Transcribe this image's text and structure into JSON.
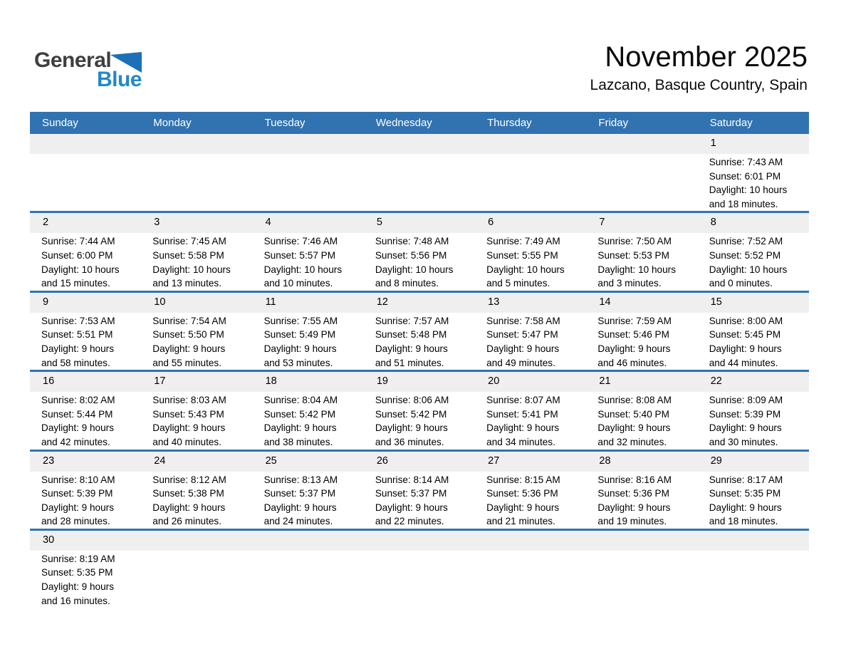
{
  "logo": {
    "general": "General",
    "blue": "Blue",
    "triangle_icon": "blue-flag-triangle"
  },
  "header": {
    "title": "November 2025",
    "subtitle": "Lazcano, Basque Country, Spain"
  },
  "colors": {
    "header_blue": "#3173B1",
    "row_divider_blue": "#2E74B5",
    "band_gray": "#EFEFEF",
    "logo_general": "#3F3F3F",
    "logo_blue": "#2189CB",
    "logo_triangle": "#1D70B7",
    "text_black": "#000000"
  },
  "calendar": {
    "day_headers": [
      "Sunday",
      "Monday",
      "Tuesday",
      "Wednesday",
      "Thursday",
      "Friday",
      "Saturday"
    ],
    "weeks": [
      [
        null,
        null,
        null,
        null,
        null,
        null,
        {
          "day": "1",
          "lines": [
            "Sunrise: 7:43 AM",
            "Sunset: 6:01 PM",
            "Daylight: 10 hours",
            "and 18 minutes."
          ]
        }
      ],
      [
        {
          "day": "2",
          "lines": [
            "Sunrise: 7:44 AM",
            "Sunset: 6:00 PM",
            "Daylight: 10 hours",
            "and 15 minutes."
          ]
        },
        {
          "day": "3",
          "lines": [
            "Sunrise: 7:45 AM",
            "Sunset: 5:58 PM",
            "Daylight: 10 hours",
            "and 13 minutes."
          ]
        },
        {
          "day": "4",
          "lines": [
            "Sunrise: 7:46 AM",
            "Sunset: 5:57 PM",
            "Daylight: 10 hours",
            "and 10 minutes."
          ]
        },
        {
          "day": "5",
          "lines": [
            "Sunrise: 7:48 AM",
            "Sunset: 5:56 PM",
            "Daylight: 10 hours",
            "and 8 minutes."
          ]
        },
        {
          "day": "6",
          "lines": [
            "Sunrise: 7:49 AM",
            "Sunset: 5:55 PM",
            "Daylight: 10 hours",
            "and 5 minutes."
          ]
        },
        {
          "day": "7",
          "lines": [
            "Sunrise: 7:50 AM",
            "Sunset: 5:53 PM",
            "Daylight: 10 hours",
            "and 3 minutes."
          ]
        },
        {
          "day": "8",
          "lines": [
            "Sunrise: 7:52 AM",
            "Sunset: 5:52 PM",
            "Daylight: 10 hours",
            "and 0 minutes."
          ]
        }
      ],
      [
        {
          "day": "9",
          "lines": [
            "Sunrise: 7:53 AM",
            "Sunset: 5:51 PM",
            "Daylight: 9 hours",
            "and 58 minutes."
          ]
        },
        {
          "day": "10",
          "lines": [
            "Sunrise: 7:54 AM",
            "Sunset: 5:50 PM",
            "Daylight: 9 hours",
            "and 55 minutes."
          ]
        },
        {
          "day": "11",
          "lines": [
            "Sunrise: 7:55 AM",
            "Sunset: 5:49 PM",
            "Daylight: 9 hours",
            "and 53 minutes."
          ]
        },
        {
          "day": "12",
          "lines": [
            "Sunrise: 7:57 AM",
            "Sunset: 5:48 PM",
            "Daylight: 9 hours",
            "and 51 minutes."
          ]
        },
        {
          "day": "13",
          "lines": [
            "Sunrise: 7:58 AM",
            "Sunset: 5:47 PM",
            "Daylight: 9 hours",
            "and 49 minutes."
          ]
        },
        {
          "day": "14",
          "lines": [
            "Sunrise: 7:59 AM",
            "Sunset: 5:46 PM",
            "Daylight: 9 hours",
            "and 46 minutes."
          ]
        },
        {
          "day": "15",
          "lines": [
            "Sunrise: 8:00 AM",
            "Sunset: 5:45 PM",
            "Daylight: 9 hours",
            "and 44 minutes."
          ]
        }
      ],
      [
        {
          "day": "16",
          "lines": [
            "Sunrise: 8:02 AM",
            "Sunset: 5:44 PM",
            "Daylight: 9 hours",
            "and 42 minutes."
          ]
        },
        {
          "day": "17",
          "lines": [
            "Sunrise: 8:03 AM",
            "Sunset: 5:43 PM",
            "Daylight: 9 hours",
            "and 40 minutes."
          ]
        },
        {
          "day": "18",
          "lines": [
            "Sunrise: 8:04 AM",
            "Sunset: 5:42 PM",
            "Daylight: 9 hours",
            "and 38 minutes."
          ]
        },
        {
          "day": "19",
          "lines": [
            "Sunrise: 8:06 AM",
            "Sunset: 5:42 PM",
            "Daylight: 9 hours",
            "and 36 minutes."
          ]
        },
        {
          "day": "20",
          "lines": [
            "Sunrise: 8:07 AM",
            "Sunset: 5:41 PM",
            "Daylight: 9 hours",
            "and 34 minutes."
          ]
        },
        {
          "day": "21",
          "lines": [
            "Sunrise: 8:08 AM",
            "Sunset: 5:40 PM",
            "Daylight: 9 hours",
            "and 32 minutes."
          ]
        },
        {
          "day": "22",
          "lines": [
            "Sunrise: 8:09 AM",
            "Sunset: 5:39 PM",
            "Daylight: 9 hours",
            "and 30 minutes."
          ]
        }
      ],
      [
        {
          "day": "23",
          "lines": [
            "Sunrise: 8:10 AM",
            "Sunset: 5:39 PM",
            "Daylight: 9 hours",
            "and 28 minutes."
          ]
        },
        {
          "day": "24",
          "lines": [
            "Sunrise: 8:12 AM",
            "Sunset: 5:38 PM",
            "Daylight: 9 hours",
            "and 26 minutes."
          ]
        },
        {
          "day": "25",
          "lines": [
            "Sunrise: 8:13 AM",
            "Sunset: 5:37 PM",
            "Daylight: 9 hours",
            "and 24 minutes."
          ]
        },
        {
          "day": "26",
          "lines": [
            "Sunrise: 8:14 AM",
            "Sunset: 5:37 PM",
            "Daylight: 9 hours",
            "and 22 minutes."
          ]
        },
        {
          "day": "27",
          "lines": [
            "Sunrise: 8:15 AM",
            "Sunset: 5:36 PM",
            "Daylight: 9 hours",
            "and 21 minutes."
          ]
        },
        {
          "day": "28",
          "lines": [
            "Sunrise: 8:16 AM",
            "Sunset: 5:36 PM",
            "Daylight: 9 hours",
            "and 19 minutes."
          ]
        },
        {
          "day": "29",
          "lines": [
            "Sunrise: 8:17 AM",
            "Sunset: 5:35 PM",
            "Daylight: 9 hours",
            "and 18 minutes."
          ]
        }
      ],
      [
        {
          "day": "30",
          "lines": [
            "Sunrise: 8:19 AM",
            "Sunset: 5:35 PM",
            "Daylight: 9 hours",
            "and 16 minutes."
          ]
        },
        null,
        null,
        null,
        null,
        null,
        null
      ]
    ]
  }
}
